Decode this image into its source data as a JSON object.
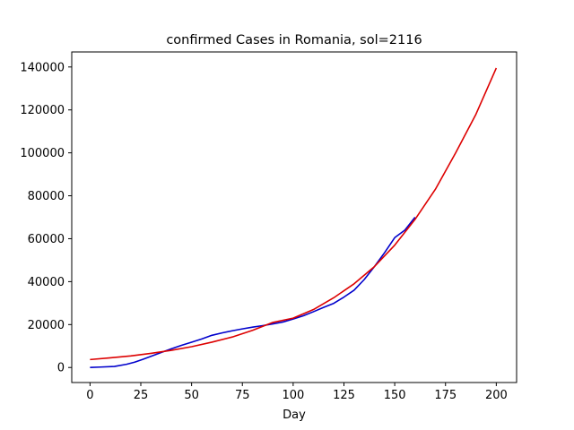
{
  "chart_data": {
    "type": "line",
    "title": "confirmed Cases in Romania, sol=2116",
    "xlabel": "Day",
    "ylabel": "",
    "xlim": [
      -9,
      210
    ],
    "ylim": [
      -7000,
      147000
    ],
    "xticks": [
      0,
      25,
      50,
      75,
      100,
      125,
      150,
      175,
      200
    ],
    "yticks": [
      0,
      20000,
      40000,
      60000,
      80000,
      100000,
      120000,
      140000
    ],
    "grid": false,
    "series": [
      {
        "color": "#0000cc",
        "x": [
          0,
          5,
          12,
          18,
          22,
          26,
          30,
          35,
          40,
          45,
          50,
          55,
          60,
          65,
          70,
          75,
          80,
          85,
          90,
          95,
          100,
          105,
          110,
          115,
          120,
          125,
          130,
          135,
          140,
          145,
          150,
          155,
          160
        ],
        "y": [
          0,
          200,
          500,
          1500,
          2500,
          3800,
          5200,
          7000,
          8700,
          10300,
          11800,
          13300,
          15000,
          16100,
          17100,
          18000,
          18800,
          19500,
          20300,
          21200,
          22600,
          24100,
          26000,
          28000,
          29900,
          32800,
          36000,
          41000,
          47000,
          53500,
          60500,
          64000,
          70000
        ]
      },
      {
        "color": "#dd0000",
        "x": [
          0,
          10,
          20,
          30,
          40,
          50,
          60,
          70,
          80,
          90,
          100,
          110,
          120,
          130,
          140,
          150,
          160,
          170,
          180,
          190,
          200
        ],
        "y": [
          3700,
          4500,
          5400,
          6600,
          8000,
          9700,
          11800,
          14200,
          17300,
          21000,
          23000,
          27000,
          32500,
          39000,
          47000,
          57000,
          69000,
          83000,
          100000,
          118000,
          139500
        ]
      }
    ]
  }
}
